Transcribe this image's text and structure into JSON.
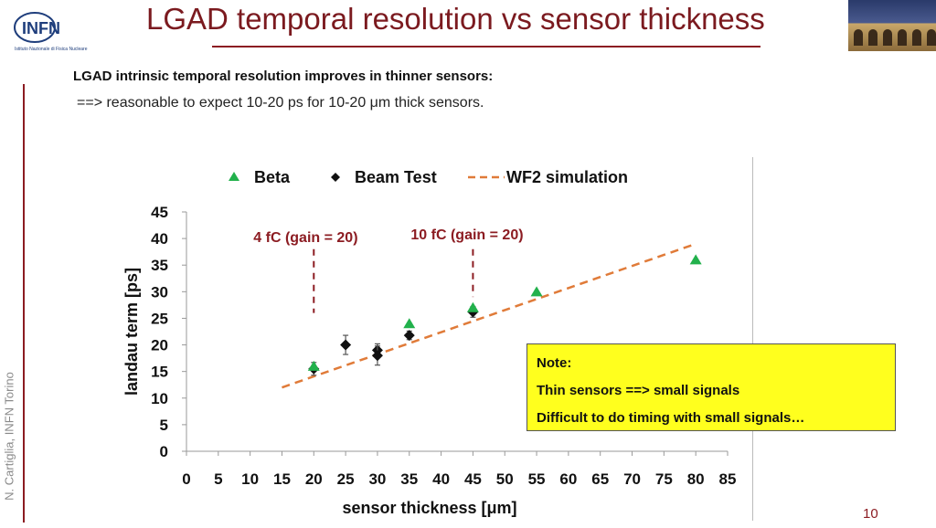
{
  "slide": {
    "title": "LGAD temporal resolution vs sensor thickness",
    "headline": "LGAD intrinsic temporal resolution improves in thinner sensors:",
    "subline": "==> reasonable to expect 10-20 ps for 10-20 μm thick sensors.",
    "author": "N. Cartiglia,  INFN Torino",
    "page_number": "10",
    "logo": {
      "name": "INFN",
      "subtitle": "Istituto Nazionale di Fisica Nucleare",
      "color": "#1f3e7c"
    },
    "note": {
      "heading": "Note:",
      "line1": "Thin sensors ==> small signals",
      "line2": "Difficult to do timing with small signals…"
    },
    "colors": {
      "accent": "#8c1c22",
      "note_bg": "#ffff1e"
    }
  },
  "chart_data": {
    "type": "scatter",
    "xlabel": "sensor thickness [μm]",
    "ylabel": "landau term [ps]",
    "xlim": [
      0,
      85
    ],
    "ylim": [
      0,
      45
    ],
    "xticks": [
      0,
      5,
      10,
      15,
      20,
      25,
      30,
      35,
      40,
      45,
      50,
      55,
      60,
      65,
      70,
      75,
      80,
      85
    ],
    "yticks": [
      0,
      5,
      10,
      15,
      20,
      25,
      30,
      35,
      40,
      45
    ],
    "legend_position": "top",
    "grid": false,
    "series": [
      {
        "name": "Beta",
        "marker": "triangle",
        "color": "#22b14c",
        "points": [
          [
            20,
            16.0
          ],
          [
            35,
            24.0
          ],
          [
            45,
            27.0
          ],
          [
            55,
            30.0
          ],
          [
            80,
            36.0
          ]
        ]
      },
      {
        "name": "Beam Test",
        "marker": "diamond",
        "color": "#111111",
        "points": [
          [
            20,
            15.5
          ],
          [
            25,
            20.0
          ],
          [
            30,
            19.0
          ],
          [
            30,
            18.0
          ],
          [
            35,
            21.8
          ],
          [
            45,
            26.2
          ]
        ],
        "errors": [
          1.2,
          1.8,
          1.2,
          1.8,
          0.8,
          1.0
        ]
      },
      {
        "name": "WF2 simulation",
        "style": "dashed",
        "color": "#e07b39",
        "points": [
          [
            15,
            12.0
          ],
          [
            80,
            39.0
          ]
        ]
      }
    ],
    "annotations": [
      {
        "text": "4 fC (gain = 20)",
        "x": 20,
        "y_top": 38,
        "y_bottom": 26
      },
      {
        "text": "10 fC (gain = 20)",
        "x": 45,
        "y_top": 38,
        "y_bottom": 29
      }
    ]
  }
}
